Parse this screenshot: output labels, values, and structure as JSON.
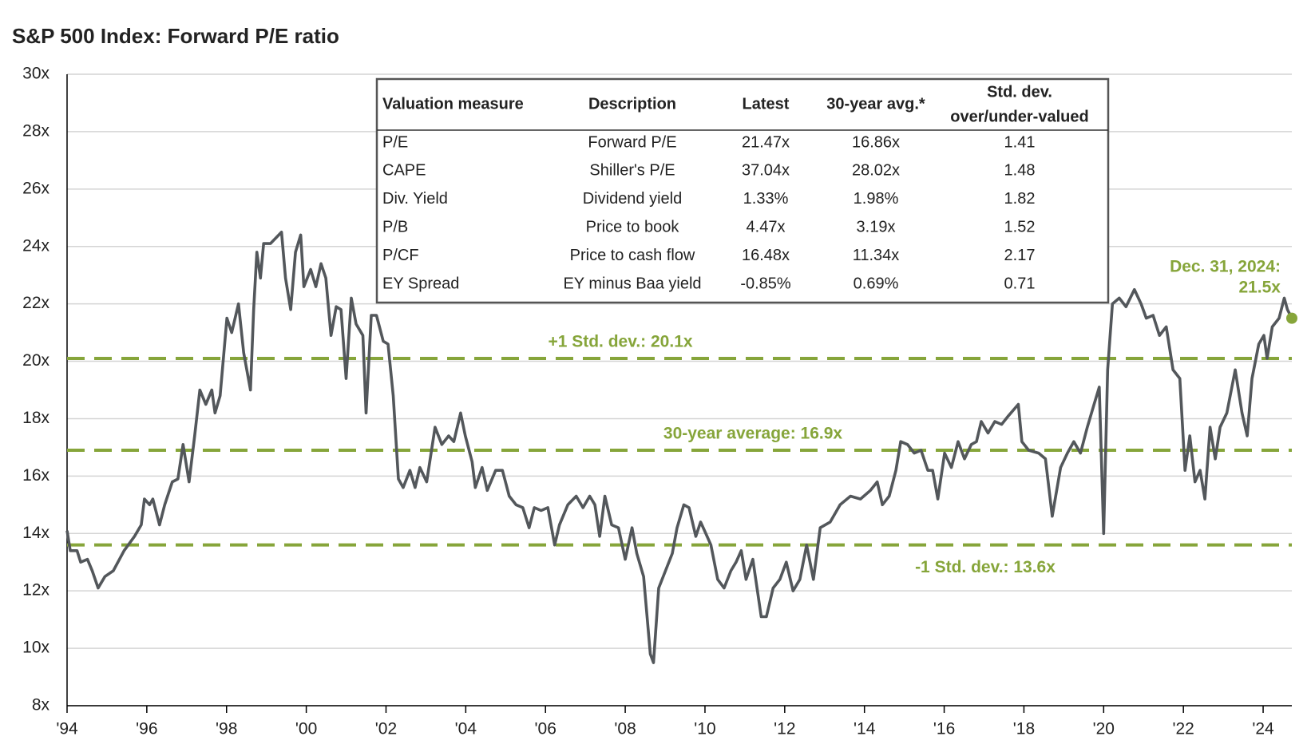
{
  "chart_data": {
    "type": "line",
    "title": "S&P 500 Index: Forward P/E ratio",
    "x": [
      1994.0,
      1994.08,
      1994.25,
      1994.34,
      1994.51,
      1994.63,
      1994.78,
      1994.95,
      1995.16,
      1995.43,
      1995.69,
      1995.86,
      1995.94,
      1996.07,
      1996.15,
      1996.32,
      1996.45,
      1996.64,
      1996.78,
      1996.91,
      1997.06,
      1997.2,
      1997.33,
      1997.48,
      1997.63,
      1997.71,
      1997.84,
      1998.01,
      1998.13,
      1998.3,
      1998.43,
      1998.6,
      1998.68,
      1998.76,
      1998.85,
      1998.93,
      1999.1,
      1999.38,
      1999.48,
      1999.61,
      1999.73,
      1999.86,
      1999.94,
      2000.11,
      2000.24,
      2000.37,
      2000.49,
      2000.62,
      2000.75,
      2000.87,
      2001.0,
      2001.13,
      2001.25,
      2001.42,
      2001.5,
      2001.63,
      2001.76,
      2001.93,
      2002.05,
      2002.18,
      2002.31,
      2002.43,
      2002.6,
      2002.73,
      2002.85,
      2003.02,
      2003.23,
      2003.4,
      2003.57,
      2003.7,
      2003.87,
      2003.99,
      2004.16,
      2004.24,
      2004.41,
      2004.54,
      2004.75,
      2004.92,
      2005.09,
      2005.26,
      2005.43,
      2005.59,
      2005.72,
      2005.89,
      2006.06,
      2006.23,
      2006.35,
      2006.56,
      2006.77,
      2006.94,
      2007.11,
      2007.24,
      2007.36,
      2007.49,
      2007.66,
      2007.83,
      2008.0,
      2008.17,
      2008.29,
      2008.46,
      2008.63,
      2008.71,
      2008.84,
      2009.01,
      2009.18,
      2009.3,
      2009.47,
      2009.6,
      2009.77,
      2009.89,
      2010.02,
      2010.15,
      2010.32,
      2010.48,
      2010.65,
      2010.78,
      2010.91,
      2011.03,
      2011.2,
      2011.41,
      2011.54,
      2011.71,
      2011.88,
      2012.04,
      2012.21,
      2012.38,
      2012.55,
      2012.72,
      2012.89,
      2013.14,
      2013.39,
      2013.65,
      2013.9,
      2014.15,
      2014.32,
      2014.45,
      2014.62,
      2014.79,
      2014.91,
      2015.08,
      2015.25,
      2015.42,
      2015.59,
      2015.71,
      2015.84,
      2016.01,
      2016.18,
      2016.35,
      2016.51,
      2016.68,
      2016.81,
      2016.93,
      2017.1,
      2017.27,
      2017.44,
      2017.61,
      2017.86,
      2017.95,
      2018.12,
      2018.37,
      2018.54,
      2018.71,
      2018.92,
      2019.09,
      2019.25,
      2019.42,
      2019.59,
      2019.76,
      2019.89,
      2020.0,
      2020.1,
      2020.22,
      2020.39,
      2020.56,
      2020.77,
      2020.94,
      2021.07,
      2021.24,
      2021.4,
      2021.57,
      2021.74,
      2021.91,
      2022.04,
      2022.16,
      2022.29,
      2022.42,
      2022.54,
      2022.67,
      2022.8,
      2022.92,
      2023.09,
      2023.3,
      2023.47,
      2023.6,
      2023.72,
      2023.89,
      2024.02,
      2024.1,
      2024.23,
      2024.4,
      2024.53,
      2024.61,
      2024.72
    ],
    "series": [
      {
        "color": "#53575b",
        "values": [
          14.1,
          13.4,
          13.4,
          13.0,
          13.1,
          12.7,
          12.1,
          12.5,
          12.7,
          13.4,
          13.9,
          14.3,
          15.2,
          15.0,
          15.2,
          14.3,
          15.0,
          15.8,
          15.9,
          17.1,
          15.8,
          17.4,
          19.0,
          18.5,
          19.0,
          18.2,
          18.8,
          21.5,
          21.0,
          22.0,
          20.3,
          19.0,
          21.8,
          23.8,
          22.9,
          24.1,
          24.1,
          24.5,
          22.9,
          21.8,
          23.8,
          24.4,
          22.6,
          23.2,
          22.6,
          23.4,
          22.9,
          20.9,
          21.9,
          21.8,
          19.4,
          22.2,
          21.3,
          20.9,
          18.2,
          21.6,
          21.6,
          20.7,
          20.6,
          18.8,
          15.9,
          15.6,
          16.2,
          15.6,
          16.3,
          15.8,
          17.7,
          17.1,
          17.4,
          17.2,
          18.2,
          17.4,
          16.5,
          15.6,
          16.3,
          15.5,
          16.2,
          16.2,
          15.3,
          15.0,
          14.9,
          14.2,
          14.9,
          14.8,
          14.9,
          13.6,
          14.3,
          15.0,
          15.3,
          14.9,
          15.3,
          15.0,
          13.9,
          15.3,
          14.3,
          14.2,
          13.1,
          14.2,
          13.3,
          12.5,
          9.8,
          9.5,
          12.1,
          12.7,
          13.3,
          14.2,
          15.0,
          14.9,
          13.9,
          14.4,
          14.0,
          13.6,
          12.4,
          12.1,
          12.7,
          13.0,
          13.4,
          12.4,
          13.1,
          11.1,
          11.1,
          12.1,
          12.4,
          13.0,
          12.0,
          12.4,
          13.6,
          12.4,
          14.2,
          14.4,
          15.0,
          15.3,
          15.2,
          15.5,
          15.8,
          15.0,
          15.3,
          16.2,
          17.2,
          17.1,
          16.8,
          16.9,
          16.2,
          16.2,
          15.2,
          16.8,
          16.3,
          17.2,
          16.6,
          17.1,
          17.2,
          17.9,
          17.5,
          17.9,
          17.8,
          18.1,
          18.5,
          17.2,
          16.9,
          16.8,
          16.6,
          14.6,
          16.3,
          16.8,
          17.2,
          16.8,
          17.7,
          18.5,
          19.1,
          14.0,
          19.7,
          22.0,
          22.2,
          21.9,
          22.5,
          22.0,
          21.5,
          21.6,
          20.9,
          21.2,
          19.7,
          19.4,
          16.2,
          17.4,
          15.8,
          16.2,
          15.2,
          17.7,
          16.6,
          17.7,
          18.2,
          19.7,
          18.2,
          17.4,
          19.4,
          20.6,
          20.9,
          20.1,
          21.2,
          21.5,
          22.2,
          21.8,
          21.5
        ]
      }
    ],
    "xlim": [
      1994,
      2024.72
    ],
    "xticks": [
      {
        "value": 1994,
        "label": "'94"
      },
      {
        "value": 1996,
        "label": "'96"
      },
      {
        "value": 1998,
        "label": "'98"
      },
      {
        "value": 2000,
        "label": "'00"
      },
      {
        "value": 2002,
        "label": "'02"
      },
      {
        "value": 2004,
        "label": "'04"
      },
      {
        "value": 2006,
        "label": "'06"
      },
      {
        "value": 2008,
        "label": "'08"
      },
      {
        "value": 2010,
        "label": "'10"
      },
      {
        "value": 2012,
        "label": "'12"
      },
      {
        "value": 2014,
        "label": "'14"
      },
      {
        "value": 2016,
        "label": "'16"
      },
      {
        "value": 2018,
        "label": "'18"
      },
      {
        "value": 2020,
        "label": "'20"
      },
      {
        "value": 2022,
        "label": "'22"
      },
      {
        "value": 2024,
        "label": "'24"
      }
    ],
    "ylim": [
      8,
      30
    ],
    "yticks": [
      {
        "value": 8,
        "label": "8x"
      },
      {
        "value": 10,
        "label": "10x"
      },
      {
        "value": 12,
        "label": "12x"
      },
      {
        "value": 14,
        "label": "14x"
      },
      {
        "value": 16,
        "label": "16x"
      },
      {
        "value": 18,
        "label": "18x"
      },
      {
        "value": 20,
        "label": "20x"
      },
      {
        "value": 22,
        "label": "22x"
      },
      {
        "value": 24,
        "label": "24x"
      },
      {
        "value": 26,
        "label": "26x"
      },
      {
        "value": 28,
        "label": "28x"
      },
      {
        "value": 30,
        "label": "30x"
      }
    ],
    "grid": true,
    "reference_lines": [
      {
        "value": 20.1,
        "label": "+1 Std. dev.: 20.1x",
        "color": "#86a53a"
      },
      {
        "value": 16.9,
        "label": "30-year average: 16.9x",
        "color": "#86a53a"
      },
      {
        "value": 13.6,
        "label": "-1 Std. dev.: 13.6x",
        "color": "#86a53a"
      }
    ],
    "annotation": [
      "Dec. 31, 2024:",
      "21.5x"
    ],
    "table": {
      "columns": [
        "Valuation measure",
        "Description",
        "Latest",
        "30-year avg.*",
        [
          "Std. dev.",
          "over/under-valued"
        ]
      ],
      "rows": [
        [
          "P/E",
          "Forward P/E",
          "21.47x",
          "16.86x",
          "1.41"
        ],
        [
          "CAPE",
          "Shiller's P/E",
          "37.04x",
          "28.02x",
          "1.48"
        ],
        [
          "Div. Yield",
          "Dividend yield",
          "1.33%",
          "1.98%",
          "1.82"
        ],
        [
          "P/B",
          "Price to book",
          "4.47x",
          "3.19x",
          "1.52"
        ],
        [
          "P/CF",
          "Price to cash flow",
          "16.48x",
          "11.34x",
          "2.17"
        ],
        [
          "EY Spread",
          "EY minus Baa yield",
          "-0.85%",
          "0.69%",
          "0.71"
        ]
      ]
    }
  }
}
